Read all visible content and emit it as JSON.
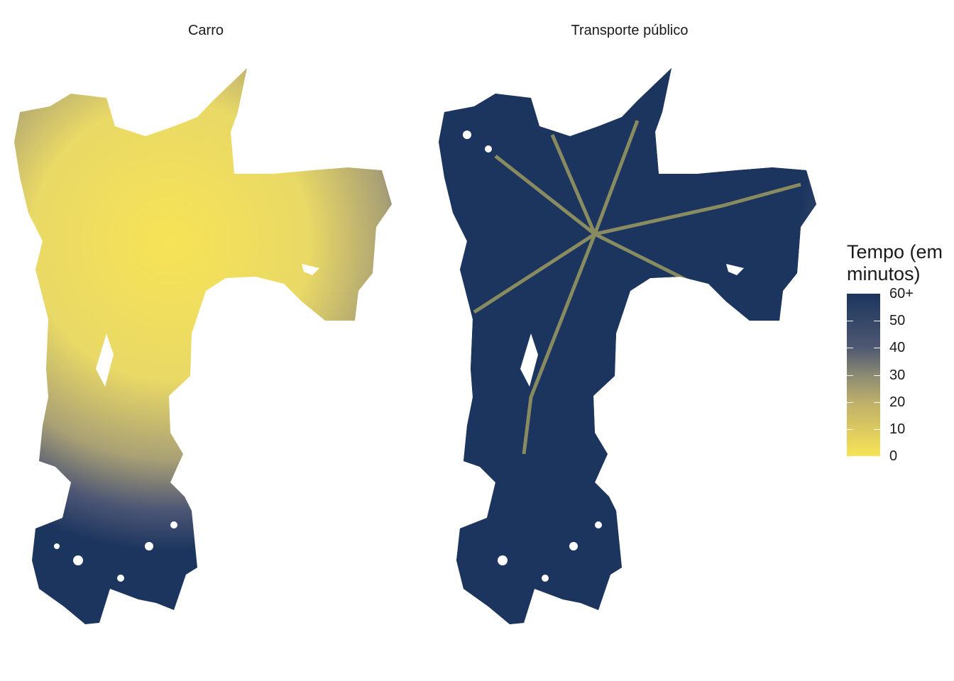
{
  "panels": [
    {
      "title": "Carro",
      "mode": "car"
    },
    {
      "title": "Transporte público",
      "mode": "transit"
    }
  ],
  "legend": {
    "title_line1": "Tempo (em",
    "title_line2": "minutos)",
    "ticks": [
      "60+",
      "50",
      "40",
      "30",
      "20",
      "10",
      "0"
    ],
    "tick_values": [
      60,
      50,
      40,
      30,
      20,
      10,
      0
    ],
    "range": [
      0,
      60
    ],
    "colors": {
      "low": "#f7e356",
      "mid": "#8b8a73",
      "high": "#1c355e"
    }
  }
}
